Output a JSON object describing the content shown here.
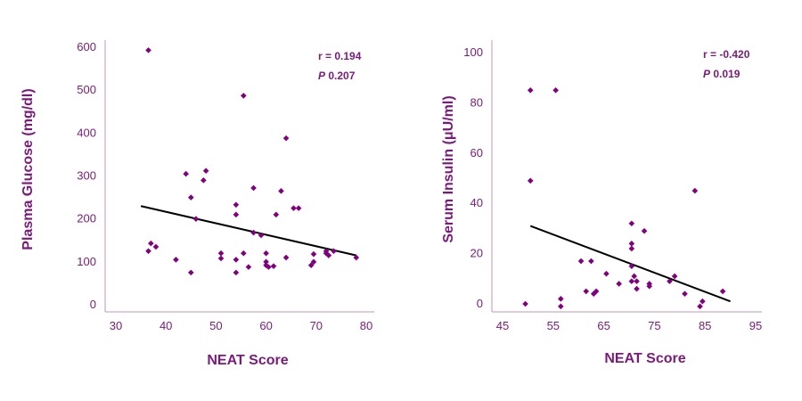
{
  "colors": {
    "accent": "#800080",
    "trend": "#000000",
    "axis": "#b99ab9"
  },
  "chart_data": [
    {
      "type": "scatter",
      "xlabel": "NEAT Score",
      "ylabel": "Plasma Glucose (mg/dl)",
      "xlim": [
        30,
        80
      ],
      "ylim": [
        0,
        600
      ],
      "xticks": [
        30,
        40,
        50,
        60,
        70,
        80
      ],
      "yticks": [
        0,
        100,
        200,
        300,
        400,
        500,
        600
      ],
      "stats": {
        "r": "r = 0.194",
        "p_label": "P",
        "p_value": "0.207"
      },
      "trendline": [
        [
          35,
          230
        ],
        [
          78,
          115
        ]
      ],
      "points": [
        [
          36.5,
          593
        ],
        [
          36.5,
          125
        ],
        [
          37,
          143
        ],
        [
          38,
          135
        ],
        [
          42,
          105
        ],
        [
          44,
          305
        ],
        [
          45,
          75
        ],
        [
          45,
          250
        ],
        [
          46,
          200
        ],
        [
          47.5,
          290
        ],
        [
          48,
          312
        ],
        [
          51,
          120
        ],
        [
          51,
          108
        ],
        [
          54,
          233
        ],
        [
          54,
          210
        ],
        [
          54,
          105
        ],
        [
          54,
          75
        ],
        [
          55.5,
          487
        ],
        [
          55.5,
          120
        ],
        [
          56.5,
          88
        ],
        [
          57.5,
          272
        ],
        [
          57.5,
          168
        ],
        [
          59,
          162
        ],
        [
          60,
          120
        ],
        [
          60,
          100
        ],
        [
          60,
          92
        ],
        [
          60.5,
          88
        ],
        [
          61.5,
          90
        ],
        [
          62,
          210
        ],
        [
          63,
          265
        ],
        [
          64,
          388
        ],
        [
          64,
          110
        ],
        [
          65.5,
          225
        ],
        [
          66.5,
          225
        ],
        [
          69,
          92
        ],
        [
          69.5,
          100
        ],
        [
          69.5,
          118
        ],
        [
          72,
          125
        ],
        [
          72,
          120
        ],
        [
          72.5,
          115
        ],
        [
          73.5,
          125
        ],
        [
          78,
          110
        ]
      ]
    },
    {
      "type": "scatter",
      "xlabel": "NEAT Score",
      "ylabel": "Serum Insulin (μU/ml)",
      "xlim": [
        45,
        95
      ],
      "ylim": [
        0,
        100
      ],
      "xticks": [
        45,
        55,
        65,
        75,
        85,
        95
      ],
      "yticks": [
        0,
        20,
        40,
        60,
        80,
        100
      ],
      "stats": {
        "r": "r = -0.420",
        "p_label": "P",
        "p_value": "0.019"
      },
      "trendline": [
        [
          50.5,
          31
        ],
        [
          90,
          1
        ]
      ],
      "points": [
        [
          49.5,
          0
        ],
        [
          50.5,
          85
        ],
        [
          50.5,
          49
        ],
        [
          55.5,
          85
        ],
        [
          56.5,
          2
        ],
        [
          56.5,
          -1
        ],
        [
          60.5,
          17
        ],
        [
          61.5,
          5
        ],
        [
          62.5,
          17
        ],
        [
          63,
          4
        ],
        [
          63.5,
          5
        ],
        [
          65.5,
          12
        ],
        [
          68,
          8
        ],
        [
          70.5,
          32
        ],
        [
          70.5,
          24
        ],
        [
          70.5,
          22
        ],
        [
          70.5,
          15
        ],
        [
          70.5,
          9
        ],
        [
          71,
          11
        ],
        [
          71.5,
          6
        ],
        [
          71.5,
          9
        ],
        [
          73,
          29
        ],
        [
          74,
          8
        ],
        [
          74,
          7
        ],
        [
          78,
          9
        ],
        [
          79,
          11
        ],
        [
          81,
          4
        ],
        [
          83,
          45
        ],
        [
          84,
          -1
        ],
        [
          84.5,
          1
        ],
        [
          88.5,
          5
        ]
      ]
    }
  ]
}
